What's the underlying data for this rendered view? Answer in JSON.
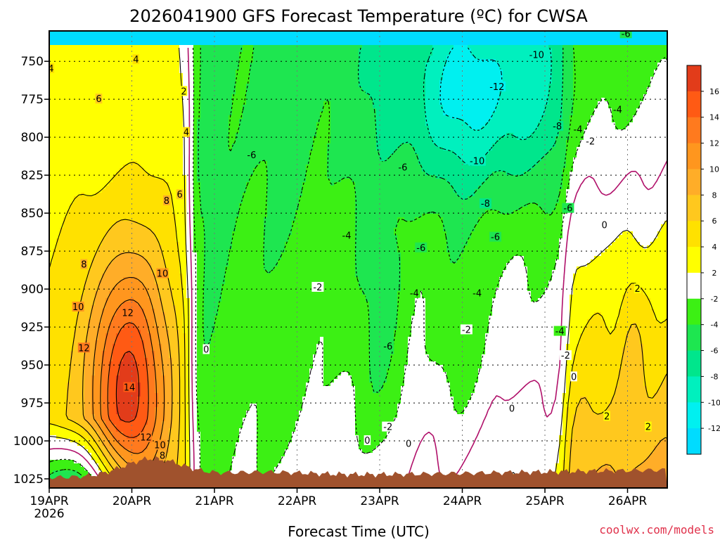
{
  "chart_data": {
    "type": "heatmap",
    "title": "2026041900 GFS Forecast Temperature (ºC) for CWSA",
    "xlabel": "Forecast Time (UTC)",
    "ylabel": "",
    "x_ticks": [
      "19APR",
      "20APR",
      "21APR",
      "22APR",
      "23APR",
      "24APR",
      "25APR",
      "26APR"
    ],
    "x_tick_sub": "2026",
    "y_ticks": [
      750,
      775,
      800,
      825,
      850,
      875,
      900,
      925,
      950,
      975,
      1000,
      1025
    ],
    "ylim": [
      1031,
      730
    ],
    "xlim_days": [
      0,
      7.5
    ],
    "colorbar": {
      "ticks": [
        16,
        14,
        12,
        10,
        8,
        6,
        4,
        2,
        -2,
        -4,
        -6,
        -8,
        -10,
        -12
      ],
      "bins": [
        {
          "lo": 16,
          "hi": 18,
          "color": "#e23c1a"
        },
        {
          "lo": 14,
          "hi": 16,
          "color": "#ff5a14"
        },
        {
          "lo": 12,
          "hi": 14,
          "color": "#ff7a1e"
        },
        {
          "lo": 10,
          "hi": 12,
          "color": "#ff961e"
        },
        {
          "lo": 8,
          "hi": 10,
          "color": "#ffad28"
        },
        {
          "lo": 6,
          "hi": 8,
          "color": "#ffc81e"
        },
        {
          "lo": 4,
          "hi": 6,
          "color": "#ffe100"
        },
        {
          "lo": 2,
          "hi": 4,
          "color": "#ffff00"
        },
        {
          "lo": -2,
          "hi": 2,
          "color": "#ffffff"
        },
        {
          "lo": -4,
          "hi": -2,
          "color": "#3cf014"
        },
        {
          "lo": -6,
          "hi": -4,
          "color": "#1ee650"
        },
        {
          "lo": -8,
          "hi": -6,
          "color": "#00e68c"
        },
        {
          "lo": -10,
          "hi": -8,
          "color": "#00f0be"
        },
        {
          "lo": -12,
          "hi": -10,
          "color": "#00f0f0"
        },
        {
          "lo": -14,
          "hi": -12,
          "color": "#00dcff"
        }
      ]
    },
    "terrain_color": "#a0522d",
    "grid": true,
    "contour_labels": [
      {
        "t": 0.02,
        "p": 755,
        "v": "4"
      },
      {
        "t": 1.05,
        "p": 749,
        "v": "4"
      },
      {
        "t": 1.63,
        "p": 770,
        "v": "2"
      },
      {
        "t": 1.66,
        "p": 797,
        "v": "4"
      },
      {
        "t": 0.6,
        "p": 775,
        "v": "6"
      },
      {
        "t": 1.58,
        "p": 838,
        "v": "6"
      },
      {
        "t": 1.42,
        "p": 842,
        "v": "8"
      },
      {
        "t": 0.42,
        "p": 884,
        "v": "8"
      },
      {
        "t": 0.35,
        "p": 912,
        "v": "10"
      },
      {
        "t": 1.37,
        "p": 890,
        "v": "10"
      },
      {
        "t": 0.42,
        "p": 939,
        "v": "12"
      },
      {
        "t": 0.95,
        "p": 916,
        "v": "12"
      },
      {
        "t": 0.97,
        "p": 965,
        "v": "14"
      },
      {
        "t": 1.17,
        "p": 998,
        "v": "12"
      },
      {
        "t": 1.34,
        "p": 1003,
        "v": "10"
      },
      {
        "t": 1.37,
        "p": 1010,
        "v": "8"
      },
      {
        "t": 2.45,
        "p": 812,
        "v": "-6"
      },
      {
        "t": 3.6,
        "p": 865,
        "v": "-4"
      },
      {
        "t": 3.25,
        "p": 899,
        "v": "-2"
      },
      {
        "t": 1.9,
        "p": 940,
        "v": "0"
      },
      {
        "t": 3.85,
        "p": 1000,
        "v": "0"
      },
      {
        "t": 4.1,
        "p": 991,
        "v": "-2"
      },
      {
        "t": 4.28,
        "p": 820,
        "v": "-6"
      },
      {
        "t": 4.1,
        "p": 938,
        "v": "-6"
      },
      {
        "t": 4.5,
        "p": 873,
        "v": "-6"
      },
      {
        "t": 4.42,
        "p": 903,
        "v": "-4"
      },
      {
        "t": 4.35,
        "p": 1002,
        "v": "0"
      },
      {
        "t": 5.05,
        "p": 927,
        "v": "-2"
      },
      {
        "t": 5.18,
        "p": 903,
        "v": "-4"
      },
      {
        "t": 5.4,
        "p": 866,
        "v": "-6"
      },
      {
        "t": 5.28,
        "p": 844,
        "v": "-8"
      },
      {
        "t": 5.18,
        "p": 816,
        "v": "-10"
      },
      {
        "t": 5.42,
        "p": 767,
        "v": "-12"
      },
      {
        "t": 5.9,
        "p": 746,
        "v": "-10"
      },
      {
        "t": 6.15,
        "p": 793,
        "v": "-8"
      },
      {
        "t": 6.4,
        "p": 795,
        "v": "-4"
      },
      {
        "t": 6.18,
        "p": 928,
        "v": "-4"
      },
      {
        "t": 6.28,
        "p": 847,
        "v": "-6"
      },
      {
        "t": 6.25,
        "p": 944,
        "v": "-2"
      },
      {
        "t": 6.35,
        "p": 958,
        "v": "0"
      },
      {
        "t": 6.55,
        "p": 803,
        "v": "-2"
      },
      {
        "t": 6.88,
        "p": 782,
        "v": "-4"
      },
      {
        "t": 6.98,
        "p": 732,
        "v": "-6"
      },
      {
        "t": 6.72,
        "p": 858,
        "v": "0"
      },
      {
        "t": 5.6,
        "p": 979,
        "v": "0"
      },
      {
        "t": 6.75,
        "p": 984,
        "v": "2"
      },
      {
        "t": 7.12,
        "p": 900,
        "v": "2"
      },
      {
        "t": 7.25,
        "p": 991,
        "v": "2"
      }
    ]
  },
  "credit": "coolwx.com/models"
}
